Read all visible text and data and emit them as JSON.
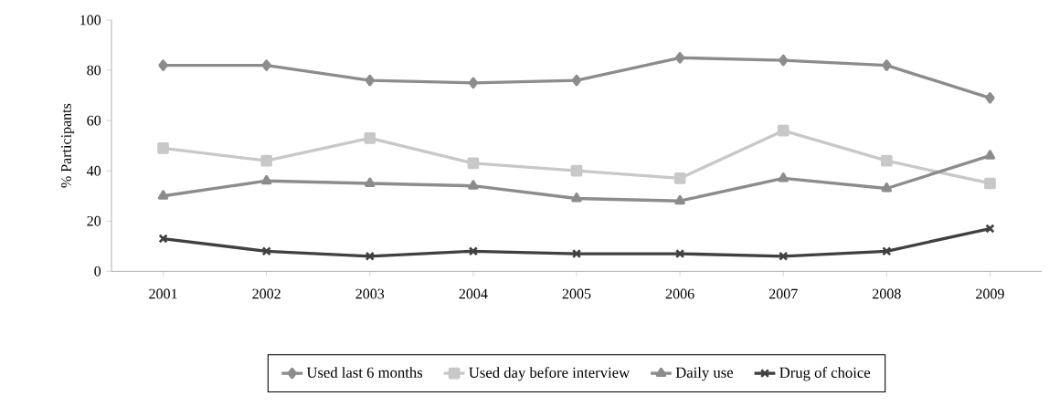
{
  "chart_data": {
    "type": "line",
    "ylabel": "% Participants",
    "categories": [
      "2001",
      "2002",
      "2003",
      "2004",
      "2005",
      "2006",
      "2007",
      "2008",
      "2009"
    ],
    "ylim": [
      0,
      100
    ],
    "yticks": [
      0,
      20,
      40,
      60,
      80,
      100
    ],
    "grid": false,
    "legend": "bottom",
    "series": [
      {
        "name": "Used last 6 months",
        "color": "#8c8c8c",
        "marker": "diamond",
        "values": [
          82,
          82,
          76,
          75,
          76,
          85,
          84,
          82,
          69
        ]
      },
      {
        "name": "Used day before interview",
        "color": "#c8c8c8",
        "marker": "square",
        "values": [
          49,
          44,
          53,
          43,
          40,
          37,
          56,
          44,
          35
        ]
      },
      {
        "name": "Daily use",
        "color": "#8c8c8c",
        "marker": "triangle",
        "values": [
          30,
          36,
          35,
          34,
          29,
          28,
          37,
          33,
          46
        ]
      },
      {
        "name": "Drug of choice",
        "color": "#404040",
        "marker": "cross",
        "values": [
          13,
          8,
          6,
          8,
          7,
          7,
          6,
          8,
          17
        ]
      }
    ]
  }
}
